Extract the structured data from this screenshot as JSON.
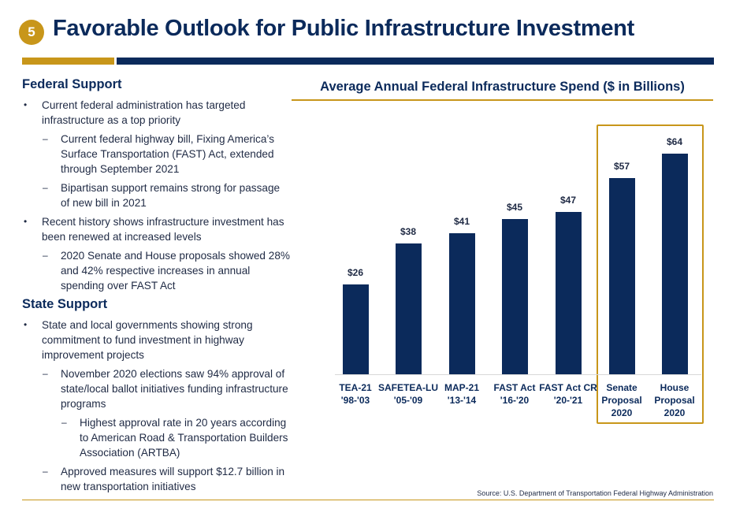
{
  "header": {
    "page_number": "5",
    "title": "Favorable Outlook for Public Infrastructure Investment"
  },
  "left_column": {
    "federal_heading": "Federal Support",
    "federal_bullets": [
      {
        "level": 1,
        "marker": "•",
        "text": "Current federal administration has targeted infrastructure as a top priority"
      },
      {
        "level": 2,
        "marker": "–",
        "text": "Current federal highway bill, Fixing America’s Surface Transportation (FAST) Act, extended through September 2021"
      },
      {
        "level": 2,
        "marker": "–",
        "text": "Bipartisan support remains strong for passage of new bill in 2021"
      },
      {
        "level": 1,
        "marker": "•",
        "text": "Recent history shows infrastructure investment has been renewed at increased levels"
      },
      {
        "level": 2,
        "marker": "–",
        "text": "2020 Senate and House proposals showed 28% and 42% respective increases in annual spending over FAST Act"
      }
    ],
    "state_heading": "State Support",
    "state_bullets": [
      {
        "level": 1,
        "marker": "•",
        "text": "State and local governments showing strong commitment to fund investment in highway improvement projects"
      },
      {
        "level": 2,
        "marker": "–",
        "text": "November 2020 elections saw 94% approval of state/local ballot initiatives funding infrastructure programs"
      },
      {
        "level": 3,
        "marker": "–",
        "text": "Highest approval rate in 20 years according to American Road & Transportation Builders Association (ARTBA)"
      },
      {
        "level": 2,
        "marker": "–",
        "text": "Approved measures will support $12.7 billion in new transportation initiatives"
      }
    ]
  },
  "chart_data": {
    "type": "bar",
    "title": "Average Annual Federal Infrastructure Spend ($ in Billions)",
    "categories": [
      "TEA-21\n'98-'03",
      "SAFETEA-LU\n'05-'09",
      "MAP-21\n'13-'14",
      "FAST Act\n'16-'20",
      "FAST Act CR\n'20-'21",
      "Senate\nProposal\n2020",
      "House\nProposal\n2020"
    ],
    "values": [
      26,
      38,
      41,
      45,
      47,
      57,
      64
    ],
    "value_labels": [
      "$26",
      "$38",
      "$41",
      "$45",
      "$47",
      "$57",
      "$64"
    ],
    "highlighted_categories": [
      "Senate\nProposal\n2020",
      "House\nProposal\n2020"
    ],
    "bar_color": "#0b2a5b",
    "highlight_color": "#c8961a",
    "ylim": [
      0,
      64
    ],
    "xlabel": "",
    "ylabel": "",
    "grid": false
  },
  "footer": {
    "source": "Source: U.S. Department of Transportation Federal Highway Administration"
  },
  "colors": {
    "navy": "#0b2a5b",
    "gold": "#c8961a"
  }
}
